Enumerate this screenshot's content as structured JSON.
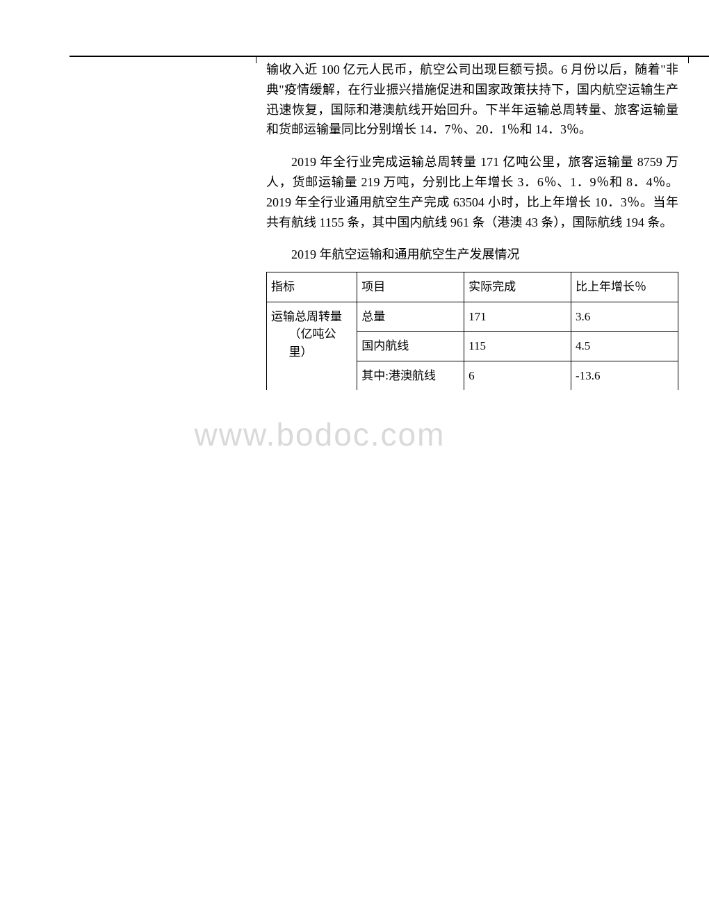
{
  "watermark": "www.bodoc.com",
  "paragraph1": "输收入近 100 亿元人民币，航空公司出现巨额亏损。6 月份以后，随着\"非典\"疫情缓解，在行业振兴措施促进和国家政策扶持下，国内航空运输生产迅速恢复，国际和港澳航线开始回升。下半年运输总周转量、旅客运输量和货邮运输量同比分别增长 14．7％、20．1％和 14．3％。",
  "paragraph2": "2019 年全行业完成运输总周转量 171 亿吨公里，旅客运输量 8759 万人，货邮运输量 219 万吨，分别比上年增长 3．6％、1．9％和 8．4％。2019 年全行业通用航空生产完成 63504 小时，比上年增长 10．3％。当年共有航线 1155 条，其中国内航线 961 条（港澳 43 条），国际航线 194 条。",
  "tableTitle": "2019 年航空运输和通用航空生产发展情况",
  "table": {
    "headers": {
      "indicator": "指标",
      "item": "项目",
      "actual": "实际完成",
      "growth": "比上年增长％"
    },
    "rows": [
      {
        "indicator": "运输总周转量（亿吨公里）",
        "sub": [
          {
            "item": "总量",
            "actual": "171",
            "growth": "3.6"
          },
          {
            "item": "国内航线",
            "actual": "115",
            "growth": "4.5"
          },
          {
            "item": "其中:港澳航线",
            "actual": "6",
            "growth": "-13.6"
          }
        ]
      }
    ]
  },
  "colors": {
    "text": "#000000",
    "border": "#000000",
    "background": "#ffffff",
    "watermark": "#d9d9d9"
  }
}
